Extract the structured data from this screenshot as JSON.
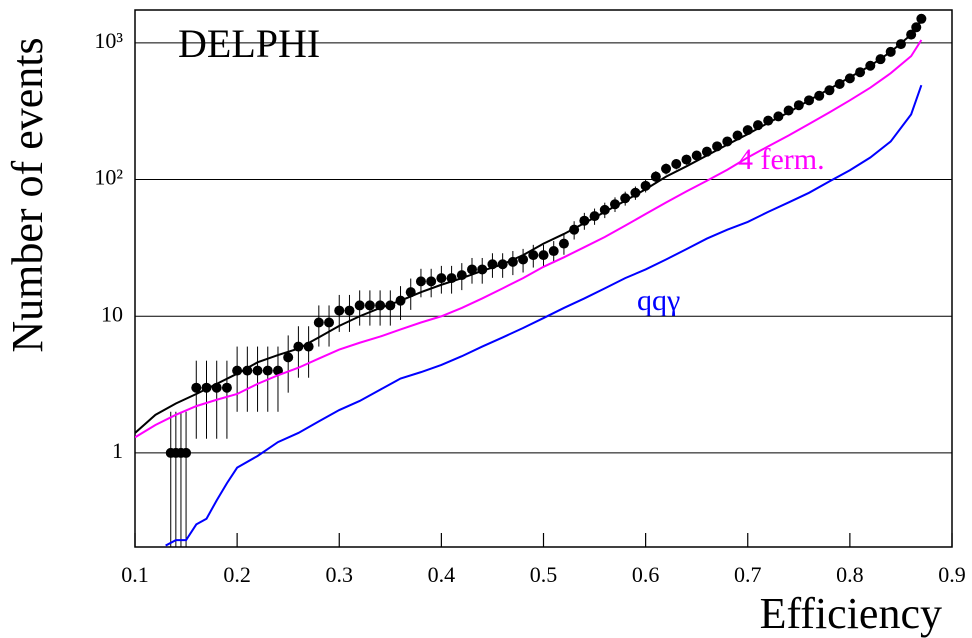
{
  "chart_data": {
    "type": "line",
    "title": "DELPHI",
    "xlabel": "Efficiency",
    "ylabel": "Number of events",
    "log_y": true,
    "grid": true,
    "xlim": [
      0.1,
      0.9
    ],
    "xticks": [
      0.1,
      0.2,
      0.3,
      0.4,
      0.5,
      0.6,
      0.7,
      0.8,
      0.9
    ],
    "ylim": [
      0.205,
      1740
    ],
    "yticks": [
      1,
      10,
      {
        "value": 100,
        "label": "10²"
      },
      {
        "value": 1000,
        "label": "10³"
      }
    ],
    "annotations": [
      {
        "text": "4 ferm.",
        "color": "#ff00ff"
      },
      {
        "text": "qqγ",
        "color": "#0000ff"
      }
    ],
    "series": [
      {
        "type": "scatter",
        "color": "#000000",
        "x": [
          0.135,
          0.14,
          0.145,
          0.15,
          0.16,
          0.17,
          0.18,
          0.19,
          0.2,
          0.21,
          0.22,
          0.23,
          0.24,
          0.25,
          0.26,
          0.27,
          0.28,
          0.29,
          0.3,
          0.31,
          0.32,
          0.33,
          0.34,
          0.35,
          0.36,
          0.37,
          0.38,
          0.39,
          0.4,
          0.41,
          0.42,
          0.43,
          0.44,
          0.45,
          0.46,
          0.47,
          0.48,
          0.49,
          0.5,
          0.51,
          0.52,
          0.53,
          0.54,
          0.55,
          0.56,
          0.57,
          0.58,
          0.59,
          0.6,
          0.61,
          0.62,
          0.63,
          0.64,
          0.65,
          0.66,
          0.67,
          0.68,
          0.69,
          0.7,
          0.71,
          0.72,
          0.73,
          0.74,
          0.75,
          0.76,
          0.77,
          0.78,
          0.79,
          0.8,
          0.81,
          0.82,
          0.83,
          0.84,
          0.85,
          0.86,
          0.865,
          0.87
        ],
        "values": [
          1,
          1,
          1,
          1,
          3,
          3,
          3,
          3,
          4,
          4,
          4,
          4,
          4,
          5,
          6,
          6,
          9,
          9,
          11,
          11,
          12,
          12,
          12,
          12,
          13,
          15,
          18,
          18,
          19,
          19,
          20,
          22,
          22,
          24,
          24,
          25,
          26,
          28,
          28,
          30,
          34,
          43,
          50,
          54,
          60,
          66,
          73,
          80,
          90,
          105,
          120,
          130,
          140,
          150,
          160,
          175,
          190,
          210,
          230,
          250,
          270,
          290,
          320,
          350,
          380,
          410,
          450,
          500,
          550,
          610,
          680,
          760,
          860,
          980,
          1150,
          1300,
          1500
        ],
        "errors": [
          1,
          1,
          1,
          1,
          1.73,
          1.73,
          1.73,
          1.73,
          2,
          2,
          2,
          2,
          2,
          2.24,
          2.45,
          2.45,
          3,
          3,
          3.32,
          3.32,
          3.46,
          3.46,
          3.46,
          3.46,
          3.61,
          3.87,
          4.24,
          4.24,
          4.36,
          4.36,
          4.47,
          4.69,
          4.69,
          4.9,
          4.9,
          5,
          5.1,
          5.29,
          5.29,
          5.48,
          5.83,
          6.56,
          7.07,
          7.35,
          7.75,
          8.12,
          8.54,
          8.94,
          9.49,
          10.2,
          11,
          11.4,
          11.8,
          12.2,
          12.6,
          13.2,
          13.8,
          14.5,
          15.2,
          15.8,
          16.4,
          17,
          17.9,
          18.7,
          19.5,
          20.2,
          21.2,
          22.4,
          23.5,
          24.7,
          26.1,
          27.6,
          29.3,
          31.3,
          33.9,
          36.1,
          38.7
        ]
      },
      {
        "type": "line",
        "color": "#000000",
        "x": [
          0.1,
          0.12,
          0.14,
          0.16,
          0.18,
          0.2,
          0.22,
          0.24,
          0.26,
          0.28,
          0.3,
          0.32,
          0.34,
          0.36,
          0.38,
          0.4,
          0.42,
          0.44,
          0.46,
          0.48,
          0.5,
          0.52,
          0.54,
          0.56,
          0.58,
          0.6,
          0.62,
          0.64,
          0.66,
          0.68,
          0.7,
          0.72,
          0.74,
          0.76,
          0.78,
          0.8,
          0.82,
          0.84,
          0.86,
          0.87
        ],
        "values": [
          1.4,
          1.9,
          2.3,
          2.7,
          3.2,
          3.8,
          4.6,
          5.2,
          5.8,
          7,
          8.5,
          10,
          11.5,
          13,
          15,
          17,
          19,
          21.5,
          24,
          28,
          34,
          40,
          48,
          58,
          70,
          85,
          105,
          125,
          150,
          180,
          215,
          260,
          310,
          380,
          460,
          560,
          680,
          860,
          1150,
          1450
        ]
      },
      {
        "type": "line",
        "color": "#ff00ff",
        "x": [
          0.1,
          0.12,
          0.14,
          0.16,
          0.18,
          0.2,
          0.22,
          0.24,
          0.26,
          0.28,
          0.3,
          0.32,
          0.34,
          0.36,
          0.38,
          0.4,
          0.42,
          0.44,
          0.46,
          0.48,
          0.5,
          0.52,
          0.54,
          0.56,
          0.58,
          0.6,
          0.62,
          0.64,
          0.66,
          0.68,
          0.7,
          0.72,
          0.74,
          0.76,
          0.78,
          0.8,
          0.82,
          0.84,
          0.86,
          0.87
        ],
        "values": [
          1.3,
          1.6,
          1.9,
          2.2,
          2.45,
          2.7,
          3.2,
          3.7,
          4.2,
          4.9,
          5.7,
          6.4,
          7.1,
          8,
          9,
          10,
          11.5,
          13.5,
          16,
          19,
          23,
          27,
          32,
          38,
          46,
          56,
          68,
          82,
          98,
          118,
          145,
          175,
          210,
          255,
          310,
          380,
          470,
          600,
          800,
          1050
        ]
      },
      {
        "type": "line",
        "color": "#0000ff",
        "x": [
          0.13,
          0.14,
          0.15,
          0.16,
          0.17,
          0.18,
          0.19,
          0.2,
          0.22,
          0.24,
          0.26,
          0.28,
          0.3,
          0.32,
          0.34,
          0.36,
          0.38,
          0.4,
          0.42,
          0.44,
          0.46,
          0.48,
          0.5,
          0.52,
          0.54,
          0.56,
          0.58,
          0.6,
          0.62,
          0.64,
          0.66,
          0.68,
          0.7,
          0.72,
          0.74,
          0.76,
          0.78,
          0.8,
          0.82,
          0.84,
          0.86,
          0.87
        ],
        "values": [
          0.21,
          0.23,
          0.23,
          0.3,
          0.33,
          0.45,
          0.6,
          0.78,
          0.95,
          1.2,
          1.4,
          1.7,
          2.06,
          2.4,
          2.9,
          3.5,
          3.9,
          4.4,
          5.1,
          6,
          7,
          8.2,
          9.7,
          11.5,
          13.5,
          16,
          19,
          22,
          26,
          31,
          37,
          43,
          49,
          58,
          68,
          80,
          97,
          117,
          145,
          190,
          300,
          490
        ]
      }
    ]
  }
}
